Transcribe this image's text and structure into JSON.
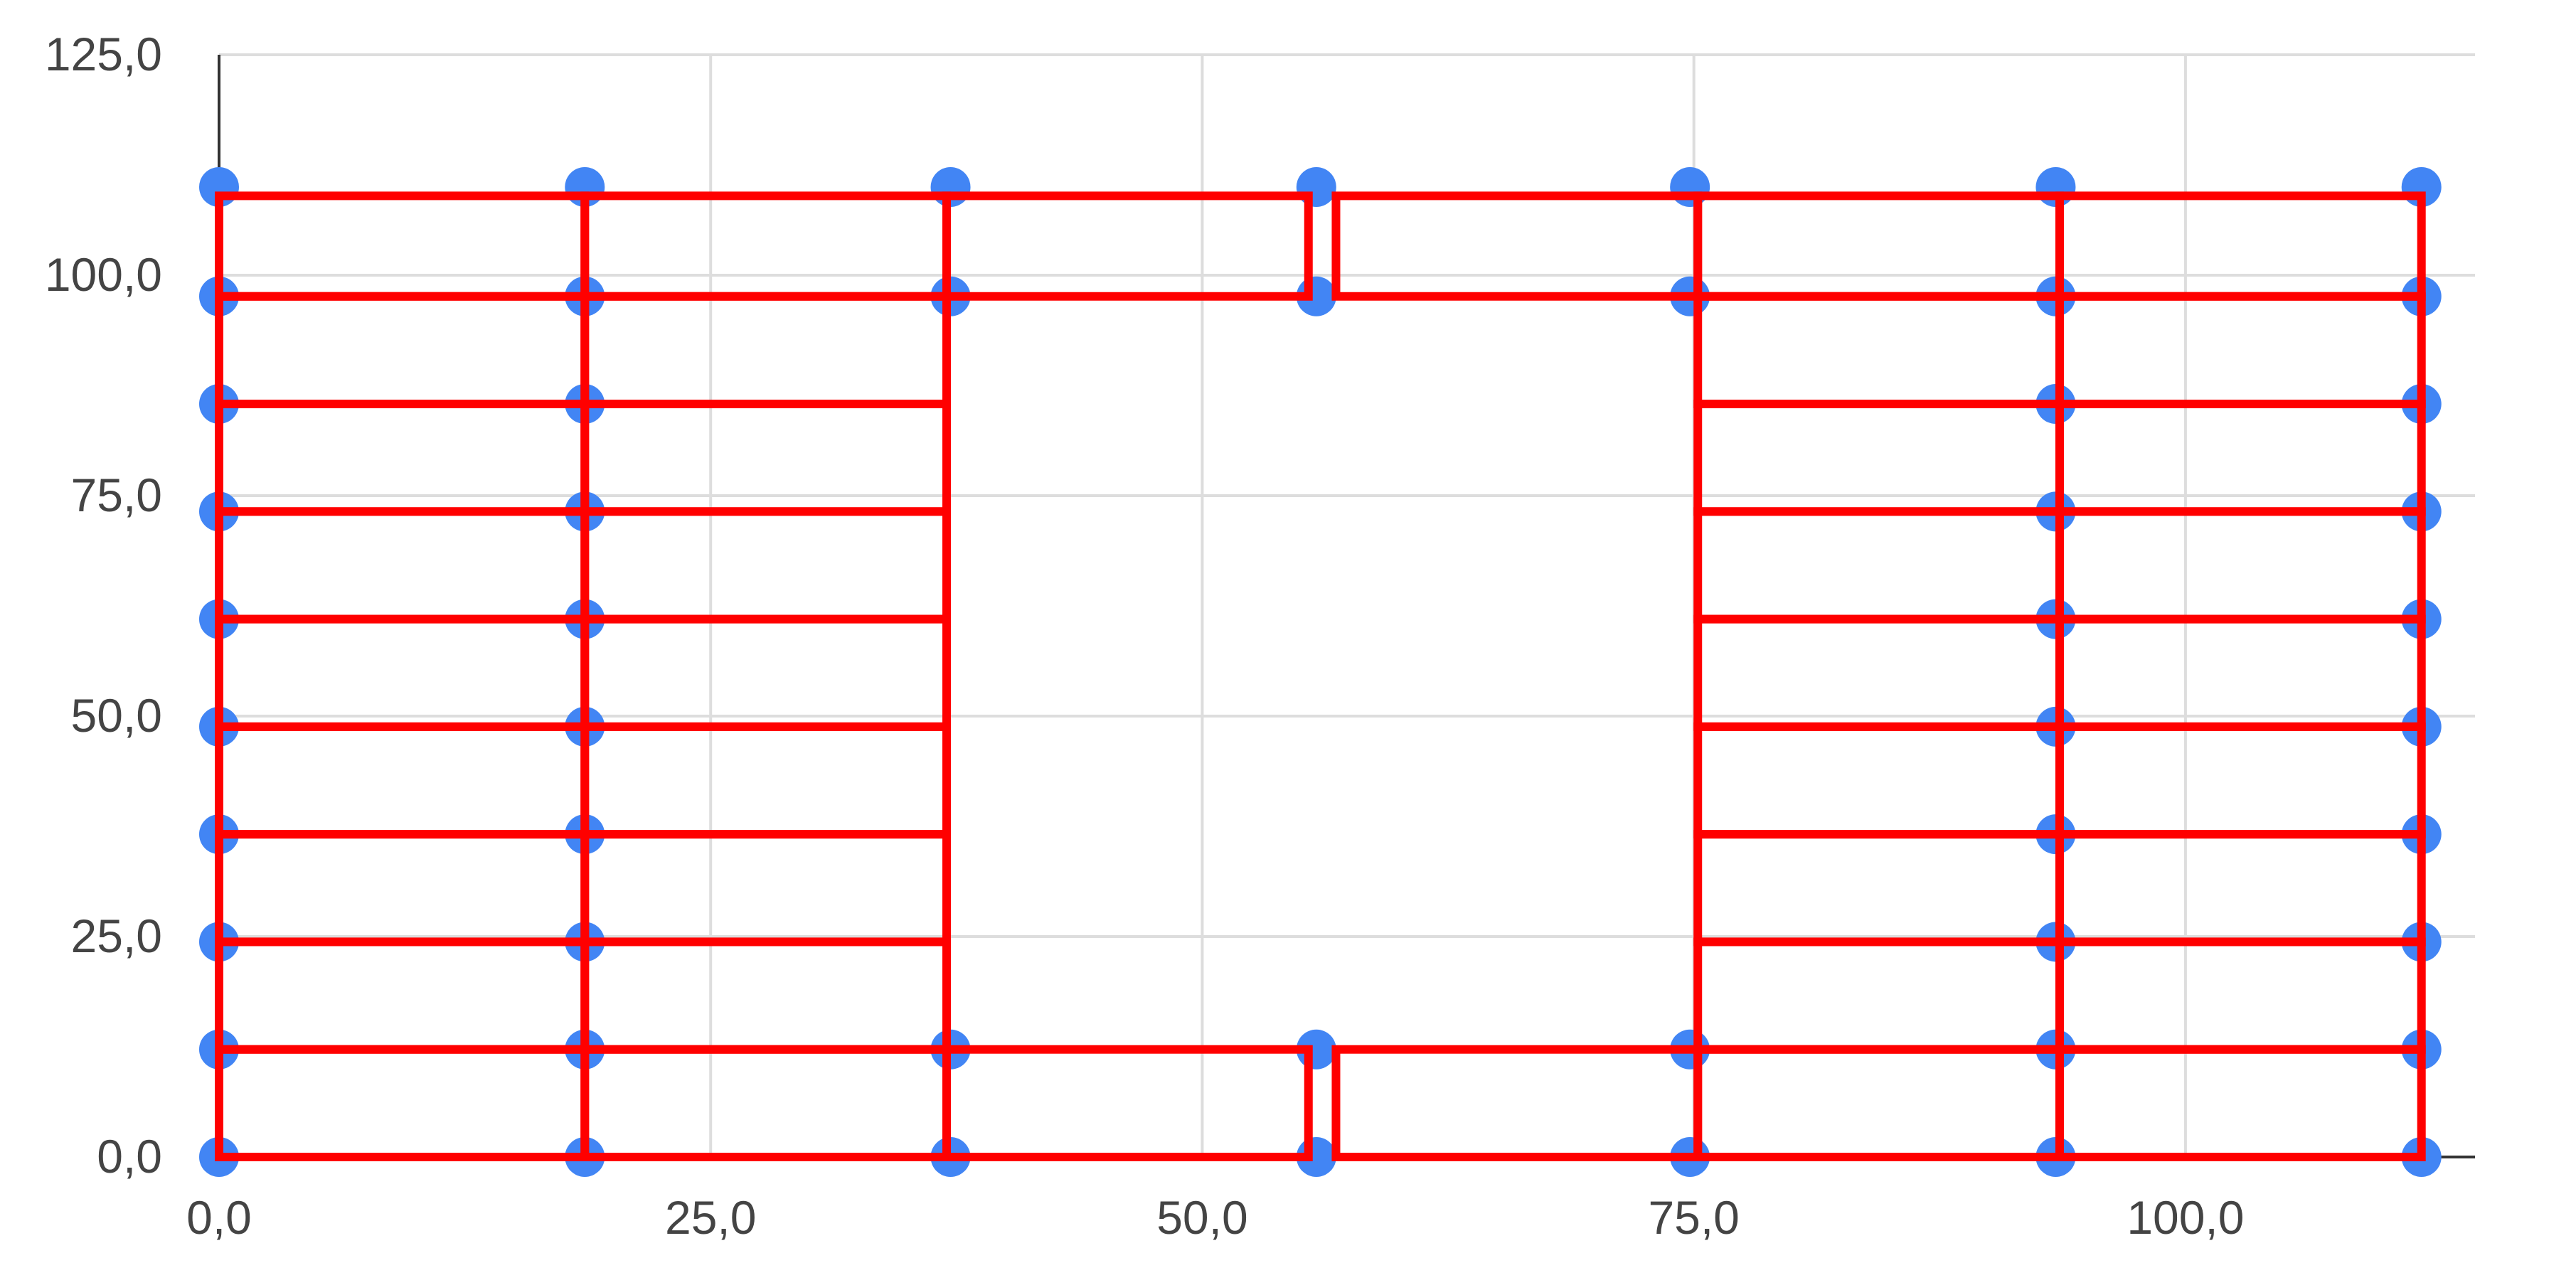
{
  "chart_data": {
    "type": "scatter",
    "title": "",
    "xlabel": "",
    "ylabel": "",
    "xlim": [
      0,
      114
    ],
    "ylim": [
      0,
      125
    ],
    "grid": true,
    "legend": "none",
    "x_ticks": [
      0,
      25,
      50,
      75,
      100
    ],
    "x_tick_labels": [
      "0,0",
      "25,0",
      "50,0",
      "75,0",
      "100,0"
    ],
    "y_ticks": [
      0,
      25,
      50,
      75,
      100,
      125
    ],
    "y_tick_labels": [
      "0,0",
      "25,0",
      "50,0",
      "75,0",
      "100,0",
      "125,0"
    ],
    "series": [
      {
        "marker_color": "#4285f4",
        "points": [
          [
            0,
            0
          ],
          [
            0,
            12.2
          ],
          [
            0,
            24.4
          ],
          [
            0,
            36.6
          ],
          [
            0,
            48.8
          ],
          [
            0,
            61
          ],
          [
            0,
            73.2
          ],
          [
            0,
            85.4
          ],
          [
            0,
            97.6
          ],
          [
            0,
            110
          ],
          [
            18.6,
            0
          ],
          [
            18.6,
            12.2
          ],
          [
            18.6,
            24.4
          ],
          [
            18.6,
            36.6
          ],
          [
            18.6,
            48.8
          ],
          [
            18.6,
            61
          ],
          [
            18.6,
            73.2
          ],
          [
            18.6,
            85.4
          ],
          [
            18.6,
            97.6
          ],
          [
            18.6,
            110
          ],
          [
            37.2,
            0
          ],
          [
            37.2,
            12.2
          ],
          [
            37.2,
            97.6
          ],
          [
            37.2,
            110
          ],
          [
            55.8,
            0
          ],
          [
            55.8,
            12.2
          ],
          [
            55.8,
            97.6
          ],
          [
            55.8,
            110
          ],
          [
            74.8,
            0
          ],
          [
            74.8,
            12.2
          ],
          [
            74.8,
            97.6
          ],
          [
            74.8,
            110
          ],
          [
            93.4,
            0
          ],
          [
            93.4,
            12.2
          ],
          [
            93.4,
            24.4
          ],
          [
            93.4,
            36.6
          ],
          [
            93.4,
            48.8
          ],
          [
            93.4,
            61
          ],
          [
            93.4,
            73.2
          ],
          [
            93.4,
            85.4
          ],
          [
            93.4,
            97.6
          ],
          [
            93.4,
            110
          ],
          [
            112,
            0
          ],
          [
            112,
            12.2
          ],
          [
            112,
            24.4
          ],
          [
            112,
            36.6
          ],
          [
            112,
            48.8
          ],
          [
            112,
            61
          ],
          [
            112,
            73.2
          ],
          [
            112,
            85.4
          ],
          [
            112,
            97.6
          ],
          [
            112,
            110
          ]
        ]
      }
    ],
    "overlay_rectangles": {
      "color": "#ff0000",
      "rects": [
        [
          0,
          0,
          18.6,
          12.2
        ],
        [
          0,
          12.2,
          18.6,
          24.4
        ],
        [
          0,
          24.4,
          18.6,
          36.6
        ],
        [
          0,
          36.6,
          18.6,
          48.8
        ],
        [
          0,
          48.8,
          18.6,
          61
        ],
        [
          0,
          61,
          18.6,
          73.2
        ],
        [
          0,
          73.2,
          18.6,
          85.4
        ],
        [
          0,
          85.4,
          18.6,
          97.6
        ],
        [
          0,
          97.6,
          18.6,
          109
        ],
        [
          18.6,
          0,
          37,
          12.2
        ],
        [
          18.6,
          12.2,
          37,
          24.4
        ],
        [
          18.6,
          24.4,
          37,
          36.6
        ],
        [
          18.6,
          36.6,
          37,
          48.8
        ],
        [
          18.6,
          48.8,
          37,
          61
        ],
        [
          18.6,
          61,
          37,
          73.2
        ],
        [
          18.6,
          73.2,
          37,
          85.4
        ],
        [
          18.6,
          85.4,
          37,
          97.6
        ],
        [
          18.6,
          97.6,
          37,
          109
        ],
        [
          37,
          0,
          55.4,
          12.2
        ],
        [
          37,
          97.6,
          55.4,
          109
        ],
        [
          56.8,
          0,
          75.2,
          12.2
        ],
        [
          56.8,
          97.6,
          75.2,
          109
        ],
        [
          75.2,
          0,
          93.6,
          12.2
        ],
        [
          75.2,
          12.2,
          93.6,
          24.4
        ],
        [
          75.2,
          24.4,
          93.6,
          36.6
        ],
        [
          75.2,
          36.6,
          93.6,
          48.8
        ],
        [
          75.2,
          48.8,
          93.6,
          61
        ],
        [
          75.2,
          61,
          93.6,
          73.2
        ],
        [
          75.2,
          73.2,
          93.6,
          85.4
        ],
        [
          75.2,
          85.4,
          93.6,
          97.6
        ],
        [
          75.2,
          97.6,
          93.6,
          109
        ],
        [
          93.6,
          0,
          112,
          12.2
        ],
        [
          93.6,
          12.2,
          112,
          24.4
        ],
        [
          93.6,
          24.4,
          112,
          36.6
        ],
        [
          93.6,
          36.6,
          112,
          48.8
        ],
        [
          93.6,
          48.8,
          112,
          61
        ],
        [
          93.6,
          61,
          112,
          73.2
        ],
        [
          93.6,
          73.2,
          112,
          85.4
        ],
        [
          93.6,
          85.4,
          112,
          97.6
        ],
        [
          93.6,
          97.6,
          112,
          109
        ]
      ]
    }
  }
}
